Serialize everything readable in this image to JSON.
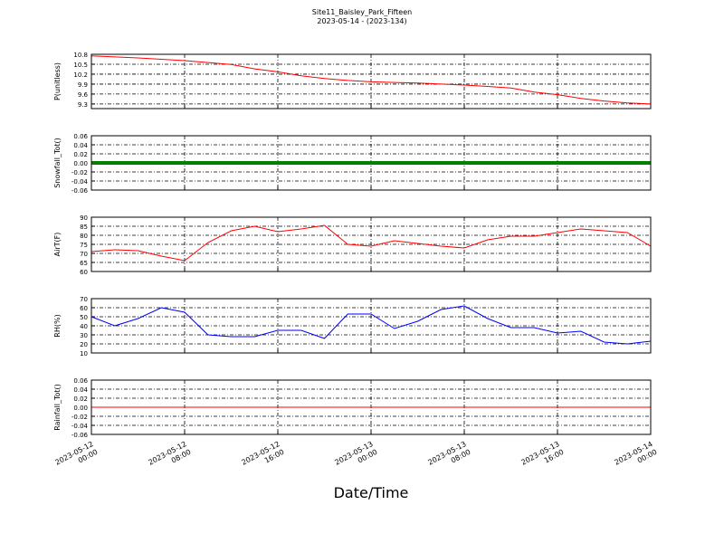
{
  "title": "Site11_Baisley_Park_Fifteen",
  "subtitle": "2023-05-14 - (2023-134)",
  "x_label": "Date/Time",
  "chart_data": [
    {
      "type": "line",
      "ylabel": "P(unitless)",
      "color": "#ff0000",
      "line_width": 1,
      "grid": true,
      "xlim": [
        "2023-05-12 00:00",
        "2023-05-14 00:00"
      ],
      "x": [
        "2023-05-12 00:00",
        "2023-05-12 02:00",
        "2023-05-12 04:00",
        "2023-05-12 06:00",
        "2023-05-12 08:00",
        "2023-05-12 10:00",
        "2023-05-12 12:00",
        "2023-05-12 14:00",
        "2023-05-12 16:00",
        "2023-05-12 18:00",
        "2023-05-12 20:00",
        "2023-05-12 22:00",
        "2023-05-13 00:00",
        "2023-05-13 02:00",
        "2023-05-13 04:00",
        "2023-05-13 06:00",
        "2023-05-13 08:00",
        "2023-05-13 10:00",
        "2023-05-13 12:00",
        "2023-05-13 14:00",
        "2023-05-13 16:00",
        "2023-05-13 18:00",
        "2023-05-13 20:00",
        "2023-05-13 22:00",
        "2023-05-14 00:00"
      ],
      "values": [
        10.75,
        10.72,
        10.69,
        10.65,
        10.61,
        10.55,
        10.49,
        10.36,
        10.27,
        10.15,
        10.07,
        10.01,
        9.97,
        9.95,
        9.93,
        9.9,
        9.87,
        9.83,
        9.78,
        9.66,
        9.58,
        9.47,
        9.39,
        9.33,
        9.3
      ],
      "ylim": [
        9.16,
        10.8
      ],
      "yticks": [
        10.8,
        10.5,
        10.2,
        9.9,
        9.6,
        9.3
      ]
    },
    {
      "type": "line",
      "ylabel": "Snowfall_Tot()",
      "color": "#007f00",
      "line_width": 4,
      "grid": true,
      "xlim": [
        "2023-05-12 00:00",
        "2023-05-14 00:00"
      ],
      "x": [
        "2023-05-12 00:00",
        "2023-05-12 02:00",
        "2023-05-12 04:00",
        "2023-05-12 06:00",
        "2023-05-12 08:00",
        "2023-05-12 10:00",
        "2023-05-12 12:00",
        "2023-05-12 14:00",
        "2023-05-12 16:00",
        "2023-05-12 18:00",
        "2023-05-12 20:00",
        "2023-05-12 22:00",
        "2023-05-13 00:00",
        "2023-05-13 02:00",
        "2023-05-13 04:00",
        "2023-05-13 06:00",
        "2023-05-13 08:00",
        "2023-05-13 10:00",
        "2023-05-13 12:00",
        "2023-05-13 14:00",
        "2023-05-13 16:00",
        "2023-05-13 18:00",
        "2023-05-13 20:00",
        "2023-05-13 22:00",
        "2023-05-14 00:00"
      ],
      "values": [
        0,
        0,
        0,
        0,
        0,
        0,
        0,
        0,
        0,
        0,
        0,
        0,
        0,
        0,
        0,
        0,
        0,
        0,
        0,
        0,
        0,
        0,
        0,
        0,
        0
      ],
      "ylim": [
        -0.06,
        0.06
      ],
      "yticks": [
        0.06,
        0.04,
        0.02,
        {
          "value": 0,
          "label": "0.00"
        },
        -0.02,
        -0.04,
        -0.06
      ]
    },
    {
      "type": "line",
      "ylabel": "AirT(F)",
      "color": "#ff0000",
      "line_width": 1,
      "grid": true,
      "xlim": [
        "2023-05-12 00:00",
        "2023-05-14 00:00"
      ],
      "x": [
        "2023-05-12 00:00",
        "2023-05-12 02:00",
        "2023-05-12 04:00",
        "2023-05-12 06:00",
        "2023-05-12 08:00",
        "2023-05-12 10:00",
        "2023-05-12 12:00",
        "2023-05-12 14:00",
        "2023-05-12 16:00",
        "2023-05-12 18:00",
        "2023-05-12 20:00",
        "2023-05-12 22:00",
        "2023-05-13 00:00",
        "2023-05-13 02:00",
        "2023-05-13 04:00",
        "2023-05-13 06:00",
        "2023-05-13 08:00",
        "2023-05-13 10:00",
        "2023-05-13 12:00",
        "2023-05-13 14:00",
        "2023-05-13 16:00",
        "2023-05-13 18:00",
        "2023-05-13 20:00",
        "2023-05-13 22:00",
        "2023-05-14 00:00"
      ],
      "values": [
        71,
        72,
        71.5,
        68.5,
        66,
        76,
        82.5,
        85,
        82,
        83.5,
        85.5,
        75,
        74,
        77,
        75.5,
        74,
        73,
        77.5,
        79.5,
        79.5,
        81.5,
        83.5,
        82.5,
        81.5,
        74
      ],
      "ylim": [
        60,
        90
      ],
      "yticks": [
        90,
        85,
        80,
        75,
        70,
        65,
        60
      ]
    },
    {
      "type": "line",
      "ylabel": "RH(%)",
      "color": "#0000ff",
      "line_width": 1,
      "grid": true,
      "xlim": [
        "2023-05-12 00:00",
        "2023-05-14 00:00"
      ],
      "x": [
        "2023-05-12 00:00",
        "2023-05-12 02:00",
        "2023-05-12 04:00",
        "2023-05-12 06:00",
        "2023-05-12 08:00",
        "2023-05-12 10:00",
        "2023-05-12 12:00",
        "2023-05-12 14:00",
        "2023-05-12 16:00",
        "2023-05-12 18:00",
        "2023-05-12 20:00",
        "2023-05-12 22:00",
        "2023-05-13 00:00",
        "2023-05-13 02:00",
        "2023-05-13 04:00",
        "2023-05-13 06:00",
        "2023-05-13 08:00",
        "2023-05-13 10:00",
        "2023-05-13 12:00",
        "2023-05-13 14:00",
        "2023-05-13 16:00",
        "2023-05-13 18:00",
        "2023-05-13 20:00",
        "2023-05-13 22:00",
        "2023-05-14 00:00"
      ],
      "values": [
        50,
        40,
        48,
        60,
        55,
        30,
        28,
        28,
        35,
        35,
        26,
        53,
        53,
        37,
        45,
        58,
        62,
        48,
        38,
        38,
        32,
        34,
        22,
        20,
        23
      ],
      "ylim": [
        10,
        70
      ],
      "yticks": [
        70,
        60,
        50,
        40,
        30,
        20,
        10
      ]
    },
    {
      "type": "line",
      "ylabel": "Rainfall_Tot()",
      "color": "#ff0000",
      "line_width": 1,
      "grid": true,
      "xlim": [
        "2023-05-12 00:00",
        "2023-05-14 00:00"
      ],
      "x": [
        "2023-05-12 00:00",
        "2023-05-12 02:00",
        "2023-05-12 04:00",
        "2023-05-12 06:00",
        "2023-05-12 08:00",
        "2023-05-12 10:00",
        "2023-05-12 12:00",
        "2023-05-12 14:00",
        "2023-05-12 16:00",
        "2023-05-12 18:00",
        "2023-05-12 20:00",
        "2023-05-12 22:00",
        "2023-05-13 00:00",
        "2023-05-13 02:00",
        "2023-05-13 04:00",
        "2023-05-13 06:00",
        "2023-05-13 08:00",
        "2023-05-13 10:00",
        "2023-05-13 12:00",
        "2023-05-13 14:00",
        "2023-05-13 16:00",
        "2023-05-13 18:00",
        "2023-05-13 20:00",
        "2023-05-13 22:00",
        "2023-05-14 00:00"
      ],
      "values": [
        0,
        0,
        0,
        0,
        0,
        0,
        0,
        0,
        0,
        0,
        0,
        0,
        0,
        0,
        0,
        0,
        0,
        0,
        0,
        0,
        0,
        0,
        0,
        0,
        0
      ],
      "ylim": [
        -0.06,
        0.06
      ],
      "yticks": [
        0.06,
        0.04,
        0.02,
        {
          "value": 0,
          "label": "0.00"
        },
        -0.02,
        -0.04,
        -0.06
      ],
      "xticks": [
        {
          "value": "2023-05-12 00:00",
          "label": "2023-05-12\n00:00"
        },
        {
          "value": "2023-05-12 08:00",
          "label": "2023-05-12\n08:00"
        },
        {
          "value": "2023-05-12 16:00",
          "label": "2023-05-12\n16:00"
        },
        {
          "value": "2023-05-13 00:00",
          "label": "2023-05-13\n00:00"
        },
        {
          "value": "2023-05-13 08:00",
          "label": "2023-05-13\n08:00"
        },
        {
          "value": "2023-05-13 16:00",
          "label": "2023-05-13\n16:00"
        },
        {
          "value": "2023-05-14 00:00",
          "label": "2023-05-14\n00:00"
        }
      ]
    }
  ]
}
